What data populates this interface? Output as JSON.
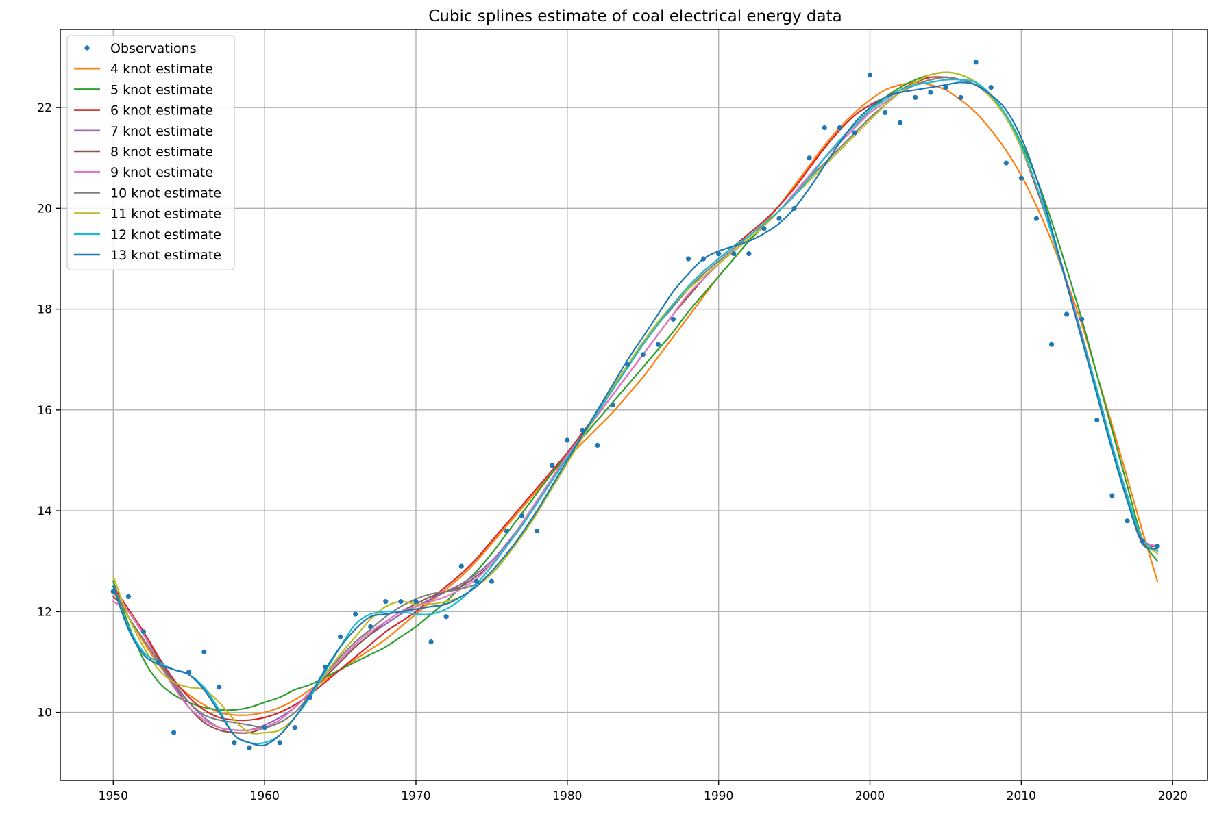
{
  "chart_data": {
    "type": "scatter",
    "title": "Cubic splines estimate of coal electrical energy data",
    "xlabel": "",
    "ylabel": "",
    "xlim": [
      1946.5,
      2022.3
    ],
    "ylim": [
      8.65,
      23.55
    ],
    "xticks": [
      1950,
      1960,
      1970,
      1980,
      1990,
      2000,
      2010,
      2020
    ],
    "yticks": [
      10,
      12,
      14,
      16,
      18,
      20,
      22
    ],
    "grid": true,
    "legend_position": "top-left",
    "observations": {
      "name": "Observations",
      "color": "#1f77b4",
      "x": [
        1950,
        1951,
        1952,
        1953,
        1954,
        1955,
        1956,
        1957,
        1958,
        1959,
        1960,
        1961,
        1962,
        1963,
        1964,
        1965,
        1966,
        1967,
        1968,
        1969,
        1970,
        1971,
        1972,
        1973,
        1974,
        1975,
        1976,
        1977,
        1978,
        1979,
        1980,
        1981,
        1982,
        1983,
        1984,
        1985,
        1986,
        1987,
        1988,
        1989,
        1990,
        1991,
        1992,
        1993,
        1994,
        1995,
        1996,
        1997,
        1998,
        1999,
        2000,
        2001,
        2002,
        2003,
        2004,
        2005,
        2006,
        2007,
        2008,
        2009,
        2010,
        2011,
        2012,
        2013,
        2014,
        2015,
        2016,
        2017,
        2018,
        2019
      ],
      "y": [
        12.4,
        12.3,
        11.6,
        11.0,
        9.6,
        10.8,
        11.2,
        10.5,
        9.4,
        9.3,
        9.7,
        9.4,
        9.7,
        10.3,
        10.9,
        11.5,
        11.95,
        11.7,
        12.2,
        12.2,
        12.2,
        11.4,
        11.9,
        12.9,
        12.6,
        12.6,
        13.6,
        13.9,
        13.6,
        14.9,
        15.4,
        15.6,
        15.3,
        16.1,
        16.9,
        17.1,
        17.3,
        17.8,
        19.0,
        19.0,
        19.1,
        19.1,
        19.1,
        19.6,
        19.8,
        20.0,
        21.0,
        21.6,
        21.6,
        21.5,
        22.65,
        21.9,
        21.7,
        22.2,
        22.3,
        22.4,
        22.2,
        22.9,
        22.4,
        20.9,
        20.6,
        19.8,
        17.3,
        17.9,
        17.8,
        15.8,
        14.3,
        13.8,
        13.4,
        13.3
      ]
    },
    "x": [
      1950,
      1951,
      1952,
      1953,
      1954,
      1955,
      1956,
      1957,
      1958,
      1959,
      1960,
      1961,
      1962,
      1963,
      1964,
      1965,
      1966,
      1967,
      1968,
      1969,
      1970,
      1971,
      1972,
      1973,
      1974,
      1975,
      1976,
      1977,
      1978,
      1979,
      1980,
      1981,
      1982,
      1983,
      1984,
      1985,
      1986,
      1987,
      1988,
      1989,
      1990,
      1991,
      1992,
      1993,
      1994,
      1995,
      1996,
      1997,
      1998,
      1999,
      2000,
      2001,
      2002,
      2003,
      2004,
      2005,
      2006,
      2007,
      2008,
      2009,
      2010,
      2011,
      2012,
      2013,
      2014,
      2015,
      2016,
      2017,
      2018,
      2019
    ],
    "series": [
      {
        "name": "4 knot estimate",
        "color": "#ff7f0e",
        "values": [
          12.4,
          11.9,
          11.4,
          10.95,
          10.6,
          10.35,
          10.15,
          10.0,
          9.95,
          9.95,
          10.0,
          10.1,
          10.25,
          10.45,
          10.65,
          10.85,
          11.05,
          11.25,
          11.45,
          11.7,
          11.95,
          12.2,
          12.45,
          12.7,
          13.0,
          13.35,
          13.7,
          14.05,
          14.4,
          14.75,
          15.05,
          15.35,
          15.65,
          15.95,
          16.3,
          16.65,
          17.05,
          17.45,
          17.85,
          18.25,
          18.65,
          19.0,
          19.35,
          19.7,
          20.05,
          20.45,
          20.85,
          21.25,
          21.6,
          21.9,
          22.15,
          22.35,
          22.45,
          22.5,
          22.45,
          22.35,
          22.15,
          21.9,
          21.55,
          21.15,
          20.65,
          20.05,
          19.35,
          18.55,
          17.7,
          16.7,
          15.7,
          14.65,
          13.6,
          12.6
        ]
      },
      {
        "name": "5 knot estimate",
        "color": "#2ca02c",
        "values": [
          12.6,
          11.75,
          11.05,
          10.6,
          10.35,
          10.2,
          10.1,
          10.05,
          10.05,
          10.1,
          10.2,
          10.3,
          10.45,
          10.55,
          10.7,
          10.85,
          11.0,
          11.15,
          11.3,
          11.5,
          11.7,
          11.95,
          12.2,
          12.5,
          12.8,
          13.15,
          13.55,
          13.95,
          14.35,
          14.75,
          15.1,
          15.45,
          15.8,
          16.15,
          16.5,
          16.85,
          17.2,
          17.55,
          17.95,
          18.3,
          18.65,
          19.0,
          19.35,
          19.65,
          19.95,
          20.3,
          20.65,
          21.0,
          21.35,
          21.65,
          21.95,
          22.2,
          22.4,
          22.55,
          22.65,
          22.7,
          22.65,
          22.5,
          22.25,
          21.85,
          21.3,
          20.6,
          19.75,
          18.8,
          17.8,
          16.7,
          15.6,
          14.5,
          13.45,
          13.0
        ]
      },
      {
        "name": "6 knot estimate",
        "color": "#d62728",
        "values": [
          12.5,
          12.05,
          11.6,
          11.1,
          10.65,
          10.3,
          10.05,
          9.9,
          9.85,
          9.85,
          9.9,
          10.0,
          10.15,
          10.35,
          10.6,
          10.85,
          11.1,
          11.35,
          11.6,
          11.8,
          12.0,
          12.25,
          12.5,
          12.75,
          13.05,
          13.4,
          13.75,
          14.1,
          14.45,
          14.8,
          15.15,
          15.55,
          15.95,
          16.4,
          16.85,
          17.3,
          17.7,
          18.1,
          18.45,
          18.75,
          19.0,
          19.25,
          19.5,
          19.75,
          20.05,
          20.4,
          20.8,
          21.2,
          21.55,
          21.85,
          22.05,
          22.2,
          22.35,
          22.5,
          22.6,
          22.6,
          22.55,
          22.45,
          22.2,
          21.8,
          21.2,
          20.4,
          19.5,
          18.5,
          17.4,
          16.35,
          15.3,
          14.3,
          13.4,
          13.3
        ]
      },
      {
        "name": "7 knot estimate",
        "color": "#9467bd",
        "values": [
          12.2,
          12.0,
          11.55,
          11.05,
          10.6,
          10.2,
          9.9,
          9.7,
          9.65,
          9.65,
          9.75,
          9.9,
          10.1,
          10.4,
          10.7,
          11.0,
          11.3,
          11.55,
          11.75,
          11.95,
          12.1,
          12.25,
          12.4,
          12.55,
          12.75,
          13.0,
          13.35,
          13.75,
          14.2,
          14.65,
          15.1,
          15.5,
          15.9,
          16.3,
          16.7,
          17.1,
          17.5,
          17.9,
          18.3,
          18.6,
          18.9,
          19.15,
          19.4,
          19.65,
          19.95,
          20.3,
          20.65,
          21.0,
          21.3,
          21.6,
          21.9,
          22.1,
          22.3,
          22.45,
          22.55,
          22.6,
          22.55,
          22.45,
          22.2,
          21.8,
          21.2,
          20.45,
          19.55,
          18.55,
          17.5,
          16.4,
          15.3,
          14.3,
          13.45,
          13.3
        ]
      },
      {
        "name": "8 knot estimate",
        "color": "#8c564b",
        "values": [
          12.3,
          12.0,
          11.55,
          11.05,
          10.55,
          10.1,
          9.8,
          9.65,
          9.6,
          9.6,
          9.7,
          9.85,
          10.1,
          10.4,
          10.7,
          11.0,
          11.3,
          11.55,
          11.8,
          12.0,
          12.15,
          12.3,
          12.4,
          12.5,
          12.7,
          12.95,
          13.3,
          13.75,
          14.2,
          14.65,
          15.1,
          15.5,
          15.9,
          16.3,
          16.7,
          17.1,
          17.5,
          17.9,
          18.25,
          18.6,
          18.9,
          19.15,
          19.4,
          19.65,
          19.95,
          20.3,
          20.65,
          21.0,
          21.3,
          21.6,
          21.9,
          22.1,
          22.3,
          22.45,
          22.55,
          22.6,
          22.55,
          22.45,
          22.2,
          21.8,
          21.2,
          20.45,
          19.5,
          18.5,
          17.45,
          16.4,
          15.3,
          14.3,
          13.45,
          13.3
        ]
      },
      {
        "name": "9 knot estimate",
        "color": "#e377c2",
        "values": [
          12.2,
          12.0,
          11.55,
          11.0,
          10.5,
          10.1,
          9.85,
          9.7,
          9.65,
          9.65,
          9.7,
          9.85,
          10.1,
          10.4,
          10.75,
          11.05,
          11.35,
          11.6,
          11.8,
          12.0,
          12.1,
          12.2,
          12.3,
          12.45,
          12.65,
          12.95,
          13.3,
          13.75,
          14.2,
          14.65,
          15.1,
          15.5,
          15.9,
          16.3,
          16.7,
          17.1,
          17.5,
          17.9,
          18.3,
          18.6,
          18.9,
          19.15,
          19.4,
          19.65,
          19.95,
          20.3,
          20.65,
          21.0,
          21.3,
          21.6,
          21.9,
          22.1,
          22.3,
          22.45,
          22.55,
          22.6,
          22.55,
          22.45,
          22.2,
          21.8,
          21.2,
          20.45,
          19.5,
          18.5,
          17.45,
          16.4,
          15.3,
          14.3,
          13.45,
          13.3
        ]
      },
      {
        "name": "10 knot estimate",
        "color": "#7f7f7f",
        "values": [
          12.5,
          11.9,
          11.45,
          11.0,
          10.55,
          10.2,
          9.95,
          9.85,
          9.8,
          9.75,
          9.7,
          9.8,
          10.0,
          10.35,
          10.75,
          11.1,
          11.4,
          11.65,
          11.9,
          12.1,
          12.25,
          12.35,
          12.4,
          12.45,
          12.55,
          12.75,
          13.1,
          13.55,
          14.0,
          14.45,
          14.95,
          15.45,
          15.95,
          16.45,
          16.9,
          17.3,
          17.7,
          18.05,
          18.4,
          18.7,
          18.95,
          19.2,
          19.45,
          19.7,
          19.95,
          20.25,
          20.6,
          20.9,
          21.2,
          21.5,
          21.8,
          22.05,
          22.3,
          22.45,
          22.55,
          22.6,
          22.55,
          22.45,
          22.2,
          21.8,
          21.2,
          20.45,
          19.5,
          18.5,
          17.45,
          16.4,
          15.3,
          14.3,
          13.45,
          13.2
        ]
      },
      {
        "name": "11 knot estimate",
        "color": "#bcbd22",
        "values": [
          12.7,
          11.9,
          11.3,
          10.85,
          10.6,
          10.5,
          10.45,
          10.2,
          9.85,
          9.6,
          9.6,
          9.65,
          9.9,
          10.3,
          10.75,
          11.15,
          11.5,
          11.85,
          12.1,
          12.2,
          12.15,
          12.15,
          12.2,
          12.3,
          12.5,
          12.75,
          13.1,
          13.5,
          13.95,
          14.45,
          14.95,
          15.45,
          15.95,
          16.45,
          16.9,
          17.35,
          17.75,
          18.1,
          18.4,
          18.65,
          18.9,
          19.15,
          19.4,
          19.65,
          19.95,
          20.25,
          20.55,
          20.85,
          21.15,
          21.45,
          21.75,
          22.05,
          22.3,
          22.5,
          22.65,
          22.7,
          22.65,
          22.5,
          22.2,
          21.8,
          21.2,
          20.45,
          19.5,
          18.5,
          17.45,
          16.4,
          15.3,
          14.3,
          13.45,
          13.15
        ]
      },
      {
        "name": "12 knot estimate",
        "color": "#17becf",
        "values": [
          12.5,
          11.7,
          11.2,
          11.0,
          10.85,
          10.75,
          10.5,
          10.05,
          9.55,
          9.4,
          9.4,
          9.55,
          9.9,
          10.3,
          10.8,
          11.3,
          11.75,
          11.95,
          12.0,
          12.0,
          11.95,
          11.95,
          12.05,
          12.25,
          12.55,
          12.9,
          13.3,
          13.7,
          14.15,
          14.6,
          15.05,
          15.5,
          15.95,
          16.4,
          16.85,
          17.3,
          17.7,
          18.1,
          18.45,
          18.75,
          19.0,
          19.25,
          19.45,
          19.7,
          19.95,
          20.25,
          20.6,
          21.0,
          21.35,
          21.65,
          21.95,
          22.15,
          22.35,
          22.45,
          22.5,
          22.55,
          22.55,
          22.5,
          22.25,
          21.85,
          21.25,
          20.45,
          19.5,
          18.5,
          17.45,
          16.4,
          15.3,
          14.3,
          13.45,
          13.2
        ]
      },
      {
        "name": "13 knot estimate",
        "color": "#1f77b4",
        "values": [
          12.5,
          11.65,
          11.15,
          10.95,
          10.85,
          10.75,
          10.45,
          10.0,
          9.55,
          9.4,
          9.35,
          9.55,
          9.9,
          10.35,
          10.85,
          11.3,
          11.65,
          11.9,
          11.95,
          12.0,
          12.05,
          12.1,
          12.15,
          12.3,
          12.5,
          12.8,
          13.15,
          13.55,
          14.0,
          14.5,
          15.0,
          15.5,
          16.0,
          16.5,
          17.0,
          17.45,
          17.9,
          18.35,
          18.7,
          19.0,
          19.15,
          19.25,
          19.35,
          19.5,
          19.7,
          20.0,
          20.4,
          20.85,
          21.3,
          21.7,
          22.0,
          22.2,
          22.3,
          22.35,
          22.4,
          22.45,
          22.5,
          22.45,
          22.25,
          21.95,
          21.4,
          20.6,
          19.6,
          18.5,
          17.4,
          16.3,
          15.2,
          14.2,
          13.35,
          13.25
        ]
      }
    ]
  }
}
